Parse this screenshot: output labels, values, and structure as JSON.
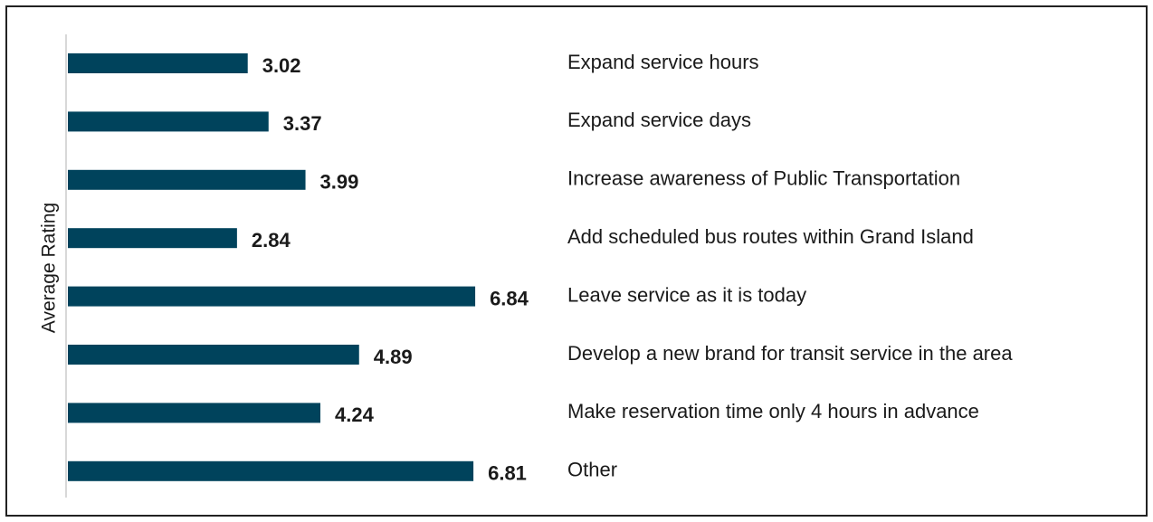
{
  "chart_data": {
    "type": "bar",
    "orientation": "horizontal",
    "y_label": "Average Rating",
    "categories": [
      "Expand service hours",
      "Expand service days",
      "Increase awareness of Public Transportation",
      "Add scheduled bus routes within Grand Island",
      "Leave service as it is today",
      "Develop a new brand for transit service in the area",
      "Make reservation time only 4 hours in advance",
      "Other"
    ],
    "values": [
      3.02,
      3.37,
      3.99,
      2.84,
      6.84,
      4.89,
      4.24,
      6.81
    ],
    "color": "#00435c"
  }
}
